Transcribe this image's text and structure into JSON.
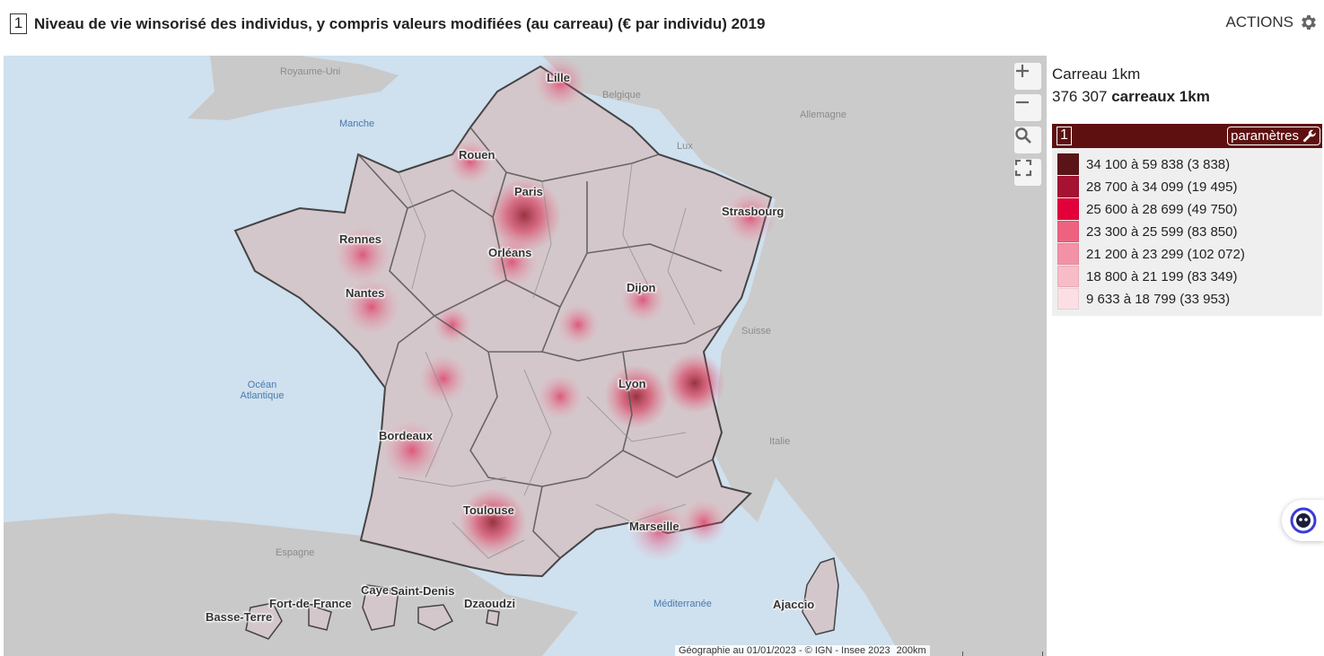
{
  "header": {
    "index": "1",
    "title": "Niveau de vie winsorisé des individus, y compris valeurs modifiées (au carreau) (€ par individu) 2019",
    "actions_label": "ACTIONS",
    "actions_icon": "gear-icon"
  },
  "map": {
    "controls": [
      "zoom-in",
      "zoom-out",
      "search",
      "fullscreen"
    ],
    "cities": [
      "Lille",
      "Rouen",
      "Paris",
      "Strasbourg",
      "Rennes",
      "Orléans",
      "Nantes",
      "Dijon",
      "Lyon",
      "Bordeaux",
      "Toulouse",
      "Marseille",
      "Ajaccio",
      "Fort-de-France",
      "Basse-Terre",
      "Cayenne",
      "Saint-Denis",
      "Dzaoudzi"
    ],
    "countries": [
      "Royaume-Uni",
      "Belgique",
      "Allemagne",
      "Lux",
      "Suisse",
      "Italie",
      "Espagne"
    ],
    "seas": [
      "Manche",
      "Océan Atlantique",
      "Méditerranée"
    ],
    "attribution": "Géographie au 01/01/2023 - © IGN - Insee 2023",
    "scale_label": "200km"
  },
  "panel": {
    "layer_name": "Carreau 1km",
    "count_value": "376 307",
    "count_unit": "carreaux 1km",
    "legend_index": "1",
    "params_label": "paramètres",
    "params_icon": "wrench-icon",
    "classes": [
      {
        "label": "34 100 à 59 838 (3 838)",
        "color": "#5a1418"
      },
      {
        "label": "28 700 à 34 099 (19 495)",
        "color": "#a51232"
      },
      {
        "label": "25 600 à 28 699 (49 750)",
        "color": "#e3003a"
      },
      {
        "label": "23 300 à 25 599 (83 850)",
        "color": "#ee6280"
      },
      {
        "label": "21 200 à 23 299 (102 072)",
        "color": "#f392a6"
      },
      {
        "label": "18 800 à 21 199 (83 349)",
        "color": "#f7bcc8"
      },
      {
        "label": "9 633 à 18 799 (33 953)",
        "color": "#fbdfe5"
      }
    ]
  }
}
